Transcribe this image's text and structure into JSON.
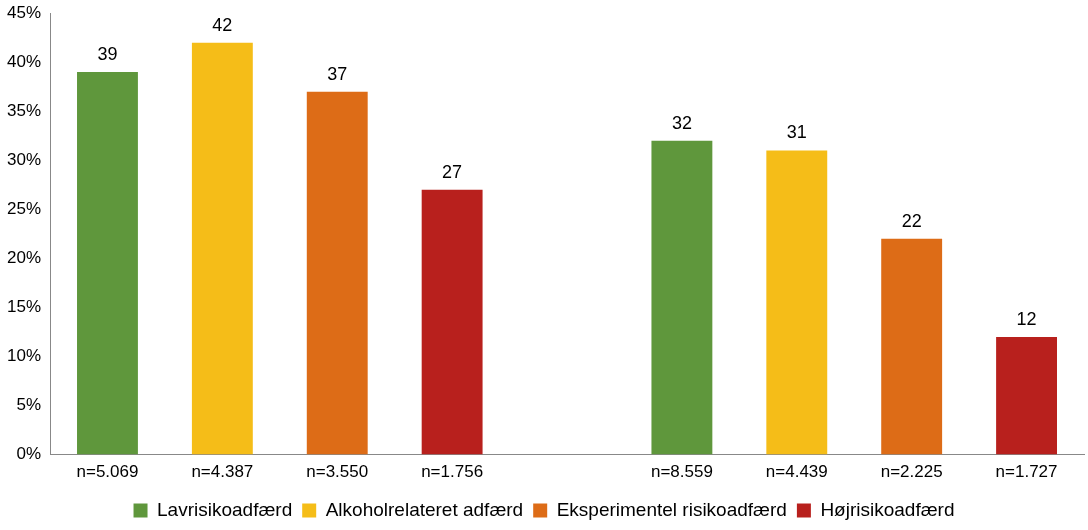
{
  "chart_data": {
    "type": "bar",
    "categories": [
      "n=5.069",
      "n=4.387",
      "n=3.550",
      "n=1.756",
      null,
      "n=8.559",
      "n=4.439",
      "n=2.225",
      "n=1.727"
    ],
    "series": [
      {
        "name": "Lavrisikoadfærd",
        "color": "#5f973c",
        "values": [
          39,
          null,
          null,
          null,
          null,
          32,
          null,
          null,
          null
        ]
      },
      {
        "name": "Alkoholrelateret adfærd",
        "color": "#f5bd18",
        "values": [
          null,
          42,
          null,
          null,
          null,
          null,
          31,
          null,
          null
        ]
      },
      {
        "name": "Eksperimentel risikoadfærd",
        "color": "#dd6c17",
        "values": [
          null,
          null,
          37,
          null,
          null,
          null,
          null,
          22,
          null
        ]
      },
      {
        "name": "Højrisikoadfærd",
        "color": "#b8201d",
        "values": [
          null,
          null,
          null,
          27,
          null,
          null,
          null,
          null,
          12
        ]
      }
    ],
    "ylim": [
      0,
      45
    ],
    "yticks": [
      {
        "value": 0,
        "label": "0%"
      },
      {
        "value": 5,
        "label": "5%"
      },
      {
        "value": 10,
        "label": "10%"
      },
      {
        "value": 15,
        "label": "15%"
      },
      {
        "value": 20,
        "label": "20%"
      },
      {
        "value": 25,
        "label": "25%"
      },
      {
        "value": 30,
        "label": "30%"
      },
      {
        "value": 35,
        "label": "35%"
      },
      {
        "value": 40,
        "label": "40%"
      },
      {
        "value": 45,
        "label": "45%"
      }
    ],
    "grid": false,
    "legend": "bottom",
    "data_labels": true
  }
}
